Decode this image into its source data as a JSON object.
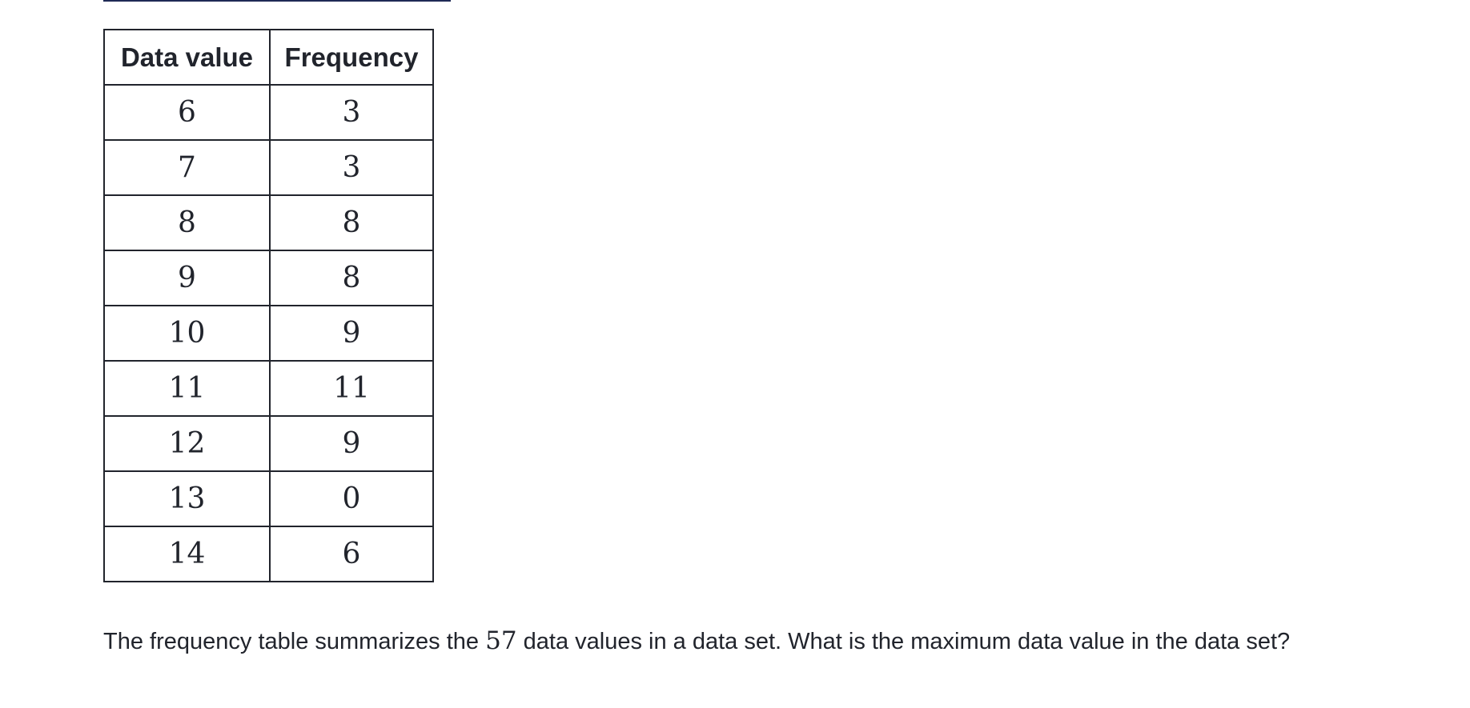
{
  "table": {
    "headers": [
      "Data value",
      "Frequency"
    ],
    "rows": [
      {
        "value": "6",
        "frequency": "3"
      },
      {
        "value": "7",
        "frequency": "3"
      },
      {
        "value": "8",
        "frequency": "8"
      },
      {
        "value": "9",
        "frequency": "8"
      },
      {
        "value": "10",
        "frequency": "9"
      },
      {
        "value": "11",
        "frequency": "11"
      },
      {
        "value": "12",
        "frequency": "9"
      },
      {
        "value": "13",
        "frequency": "0"
      },
      {
        "value": "14",
        "frequency": "6"
      }
    ]
  },
  "question": {
    "before": "The frequency table summarizes the ",
    "count": "57",
    "after": " data values in a data set. What is the maximum data value in the data set?"
  }
}
